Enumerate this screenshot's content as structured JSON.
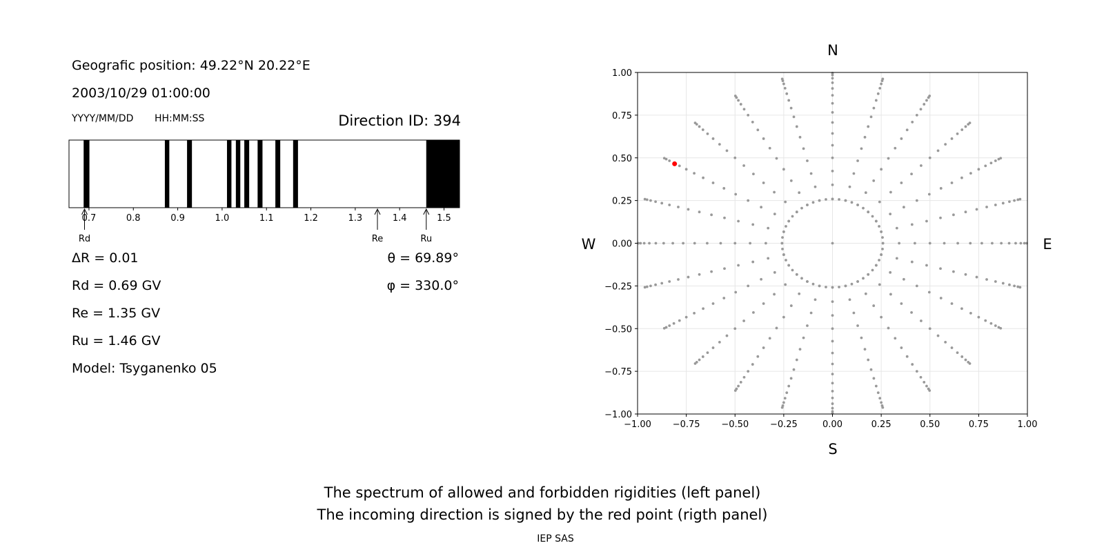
{
  "info": {
    "geo_position": "Geografic position: 49.22°N 20.22°E",
    "datetime": "2003/10/29 01:00:00",
    "date_format": "YYYY/MM/DD",
    "time_format": "HH:MM:SS",
    "direction_id": "Direction ID: 394"
  },
  "params": {
    "delta_r": "ΔR = 0.01",
    "rd": "Rd = 0.69 GV",
    "re": "Re = 1.35 GV",
    "ru": "Ru = 1.46 GV",
    "model": "Model: Tsyganenko 05",
    "theta": "θ = 69.89°",
    "phi": "φ = 330.0°"
  },
  "chart_data": [
    {
      "type": "spectrum",
      "xlim": [
        0.655,
        1.535
      ],
      "x_ticks": [
        "0.7",
        "0.8",
        "0.9",
        "1.0",
        "1.1",
        "1.2",
        "1.3",
        "1.4",
        "1.5"
      ],
      "forbidden_bands": [
        [
          0.688,
          0.701
        ],
        [
          0.871,
          0.881
        ],
        [
          0.921,
          0.932
        ],
        [
          1.011,
          1.021
        ],
        [
          1.031,
          1.041
        ],
        [
          1.05,
          1.061
        ],
        [
          1.08,
          1.091
        ],
        [
          1.12,
          1.131
        ],
        [
          1.16,
          1.171
        ],
        [
          1.46,
          1.535
        ]
      ],
      "markers": [
        {
          "label": "Rd",
          "x": 0.69
        },
        {
          "label": "Re",
          "x": 1.35
        },
        {
          "label": "Ru",
          "x": 1.46
        }
      ]
    },
    {
      "type": "scatter",
      "xlim": [
        -1,
        1
      ],
      "ylim": [
        -1,
        1
      ],
      "x_ticks": [
        "−1.00",
        "−0.75",
        "−0.50",
        "−0.25",
        "0.00",
        "0.25",
        "0.50",
        "0.75",
        "1.00"
      ],
      "y_ticks": [
        "1.00",
        "0.75",
        "0.50",
        "0.25",
        "0.00",
        "−0.25",
        "−0.50",
        "−0.75",
        "−1.00"
      ],
      "grid": true,
      "compass": {
        "north": "N",
        "south": "S",
        "east": "E",
        "west": "W"
      },
      "directions": {
        "spokes": 24,
        "zenith_step_deg": 5,
        "zenith_max_deg": 85,
        "inner_ring_deg": 15
      },
      "highlight": {
        "x": -0.81,
        "y": 0.465,
        "color": "#ff0000"
      },
      "point_color": "#999999"
    }
  ],
  "footer": {
    "caption1": "The spectrum of allowed and forbidden rigidities (left panel)",
    "caption2": "The incoming direction is signed by the red point (rigth panel)",
    "credit": "IEP SAS"
  }
}
